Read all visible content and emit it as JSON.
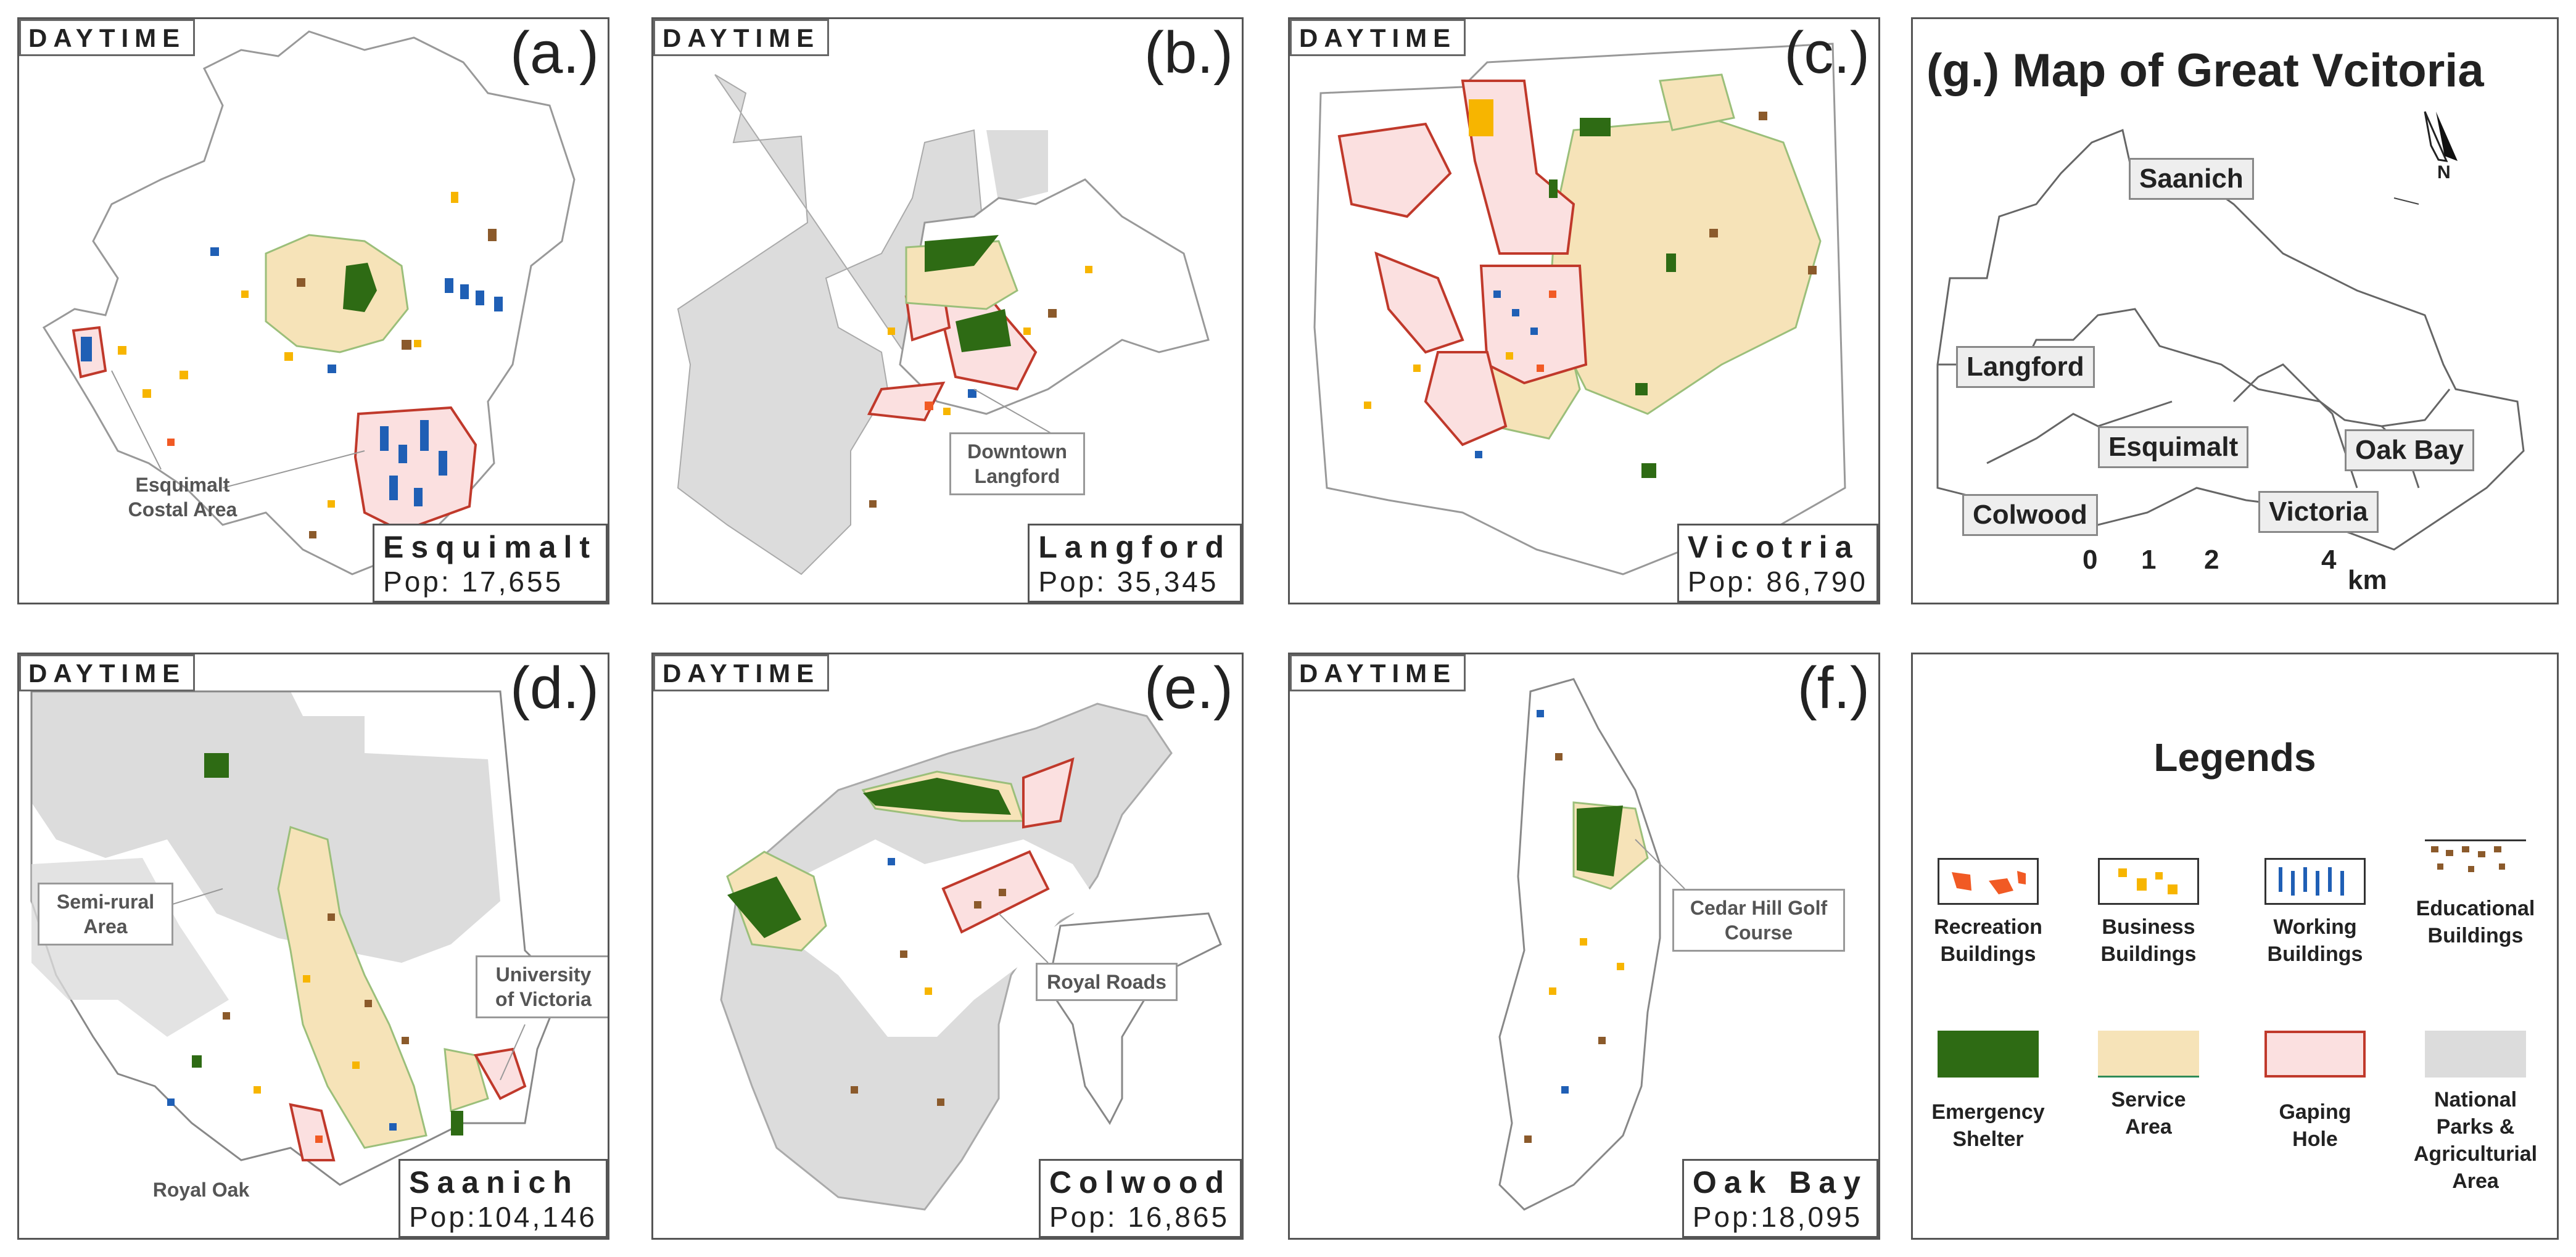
{
  "colors": {
    "recreation": "#f15a24",
    "business": "#f7b500",
    "working": "#1f5fb5",
    "educational": "#8b5a2b",
    "shelter": "#2e6b14",
    "service": "#f6e3b8",
    "gaping_fill": "#fbe0e0",
    "gaping_stroke": "#c0392b",
    "parks": "#dcdcdc"
  },
  "panels": [
    {
      "id": "a",
      "daytime": "DAYTIME",
      "letter": "(a.)",
      "name": "Esquimalt",
      "pop": "Pop: 17,655",
      "callout": "Esquimalt\nCostal Area"
    },
    {
      "id": "b",
      "daytime": "DAYTIME",
      "letter": "(b.)",
      "name": "Langford",
      "pop": "Pop: 35,345",
      "callout": "Downtown\nLangford"
    },
    {
      "id": "c",
      "daytime": "DAYTIME",
      "letter": "(c.)",
      "name": "Vicotria",
      "pop": "Pop: 86,790",
      "callout": ""
    },
    {
      "id": "d",
      "daytime": "DAYTIME",
      "letter": "(d.)",
      "name": "Saanich",
      "pop": "Pop:104,146",
      "callouts": [
        "Semi-rural\nArea",
        "University\nof Victoria",
        "Royal Oak"
      ]
    },
    {
      "id": "e",
      "daytime": "DAYTIME",
      "letter": "(e.)",
      "name": "Colwood",
      "pop": "Pop: 16,865",
      "callout": "Royal Roads"
    },
    {
      "id": "f",
      "daytime": "DAYTIME",
      "letter": "(f.)",
      "name": "Oak Bay",
      "pop": "Pop:18,095",
      "callout": "Cedar Hill Golf\nCourse"
    }
  ],
  "overview": {
    "title": "(g.) Map of Great Vcitoria",
    "north": "N",
    "labels": [
      "Saanich",
      "Langford",
      "Esquimalt",
      "Oak Bay",
      "Colwood",
      "Victoria"
    ],
    "scale": [
      "0",
      "1",
      "2",
      "4"
    ],
    "scale_unit": "km"
  },
  "legend": {
    "title": "Legends",
    "items": [
      {
        "key": "recreation",
        "label": "Recreation\nBuildings"
      },
      {
        "key": "business",
        "label": "Business\nBuildings"
      },
      {
        "key": "working",
        "label": "Working\nBuildings"
      },
      {
        "key": "educational",
        "label": "Educational\nBuildings"
      },
      {
        "key": "shelter",
        "label": "Emergency\nShelter"
      },
      {
        "key": "service",
        "label": "Service\nArea"
      },
      {
        "key": "gaping",
        "label": "Gaping\nHole"
      },
      {
        "key": "parks",
        "label": "National\nParks &\nAgriculturial\nArea"
      }
    ]
  }
}
